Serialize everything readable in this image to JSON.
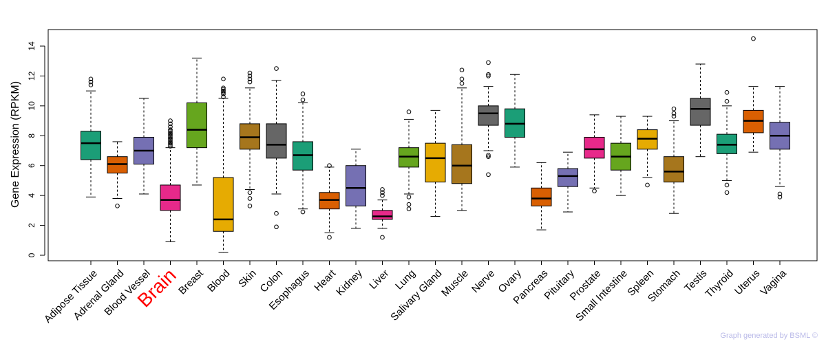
{
  "chart_data": {
    "type": "boxplot",
    "title": "",
    "xlabel": "",
    "ylabel": "Gene Expression (RPKM)",
    "ylim": [
      0,
      15
    ],
    "yticks": [
      0,
      2,
      4,
      6,
      8,
      10,
      12,
      14
    ],
    "highlight": "Brain",
    "colors": {
      "teal": "#1b9e77",
      "orange": "#d95f02",
      "purple": "#7570b3",
      "pink": "#e7298a",
      "green": "#66a61e",
      "yellow": "#e6ab02",
      "brown": "#a6761d",
      "gray": "#666666",
      "highlight_label": "#ff0000"
    },
    "series": [
      {
        "name": "Adipose Tissue",
        "color": "#1b9e77",
        "whisker_low": 3.9,
        "q1": 6.4,
        "median": 7.5,
        "q3": 8.3,
        "whisker_high": 11.0,
        "outliers": [
          11.4,
          11.6,
          11.8
        ]
      },
      {
        "name": "Adrenal Gland",
        "color": "#d95f02",
        "whisker_low": 3.8,
        "q1": 5.5,
        "median": 6.1,
        "q3": 6.6,
        "whisker_high": 7.6,
        "outliers": [
          3.3
        ]
      },
      {
        "name": "Blood Vessel",
        "color": "#7570b3",
        "whisker_low": 4.1,
        "q1": 6.1,
        "median": 7.0,
        "q3": 7.9,
        "whisker_high": 10.5,
        "outliers": []
      },
      {
        "name": "Brain",
        "color": "#e7298a",
        "whisker_low": 0.9,
        "q1": 3.0,
        "median": 3.7,
        "q3": 4.7,
        "whisker_high": 7.2,
        "outliers": [
          7.3,
          7.4,
          7.5,
          7.6,
          7.7,
          7.8,
          7.9,
          8.0,
          8.1,
          8.2,
          8.3,
          8.4,
          8.6,
          8.8,
          9.0
        ]
      },
      {
        "name": "Breast",
        "color": "#66a61e",
        "whisker_low": 4.7,
        "q1": 7.2,
        "median": 8.4,
        "q3": 10.2,
        "whisker_high": 13.2,
        "outliers": []
      },
      {
        "name": "Blood",
        "color": "#e6ab02",
        "whisker_low": 0.2,
        "q1": 1.6,
        "median": 2.4,
        "q3": 5.2,
        "whisker_high": 10.5,
        "outliers": [
          10.6,
          10.8,
          10.9,
          11.0,
          11.1,
          11.2,
          11.8
        ]
      },
      {
        "name": "Skin",
        "color": "#a6761d",
        "whisker_low": 4.4,
        "q1": 7.1,
        "median": 7.9,
        "q3": 8.8,
        "whisker_high": 11.2,
        "outliers": [
          3.3,
          3.8,
          4.2,
          11.6,
          11.8,
          12.0,
          12.2
        ]
      },
      {
        "name": "Colon",
        "color": "#666666",
        "whisker_low": 4.1,
        "q1": 6.5,
        "median": 7.4,
        "q3": 8.8,
        "whisker_high": 11.7,
        "outliers": [
          1.9,
          2.8,
          12.5
        ]
      },
      {
        "name": "Esophagus",
        "color": "#1b9e77",
        "whisker_low": 3.1,
        "q1": 5.7,
        "median": 6.7,
        "q3": 7.6,
        "whisker_high": 10.2,
        "outliers": [
          2.9,
          10.4,
          10.8
        ]
      },
      {
        "name": "Heart",
        "color": "#d95f02",
        "whisker_low": 1.5,
        "q1": 3.1,
        "median": 3.7,
        "q3": 4.2,
        "whisker_high": 5.9,
        "outliers": [
          1.2,
          6.0
        ]
      },
      {
        "name": "Kidney",
        "color": "#7570b3",
        "whisker_low": 1.8,
        "q1": 3.3,
        "median": 4.5,
        "q3": 6.0,
        "whisker_high": 7.1,
        "outliers": []
      },
      {
        "name": "Liver",
        "color": "#e7298a",
        "whisker_low": 1.8,
        "q1": 2.4,
        "median": 2.6,
        "q3": 3.0,
        "whisker_high": 3.7,
        "outliers": [
          1.2,
          4.0,
          4.2,
          4.4
        ]
      },
      {
        "name": "Lung",
        "color": "#66a61e",
        "whisker_low": 4.1,
        "q1": 5.9,
        "median": 6.6,
        "q3": 7.2,
        "whisker_high": 9.1,
        "outliers": [
          3.1,
          3.4,
          3.9,
          9.6
        ]
      },
      {
        "name": "Salivary Gland",
        "color": "#e6ab02",
        "whisker_low": 2.6,
        "q1": 4.9,
        "median": 6.5,
        "q3": 7.5,
        "whisker_high": 9.7,
        "outliers": []
      },
      {
        "name": "Muscle",
        "color": "#a6761d",
        "whisker_low": 3.0,
        "q1": 4.8,
        "median": 6.0,
        "q3": 7.4,
        "whisker_high": 11.2,
        "outliers": [
          11.5,
          11.8,
          12.4
        ]
      },
      {
        "name": "Nerve",
        "color": "#666666",
        "whisker_low": 7.0,
        "q1": 8.7,
        "median": 9.5,
        "q3": 10.0,
        "whisker_high": 11.3,
        "outliers": [
          5.4,
          6.6,
          6.7,
          12.0,
          12.1,
          12.9
        ]
      },
      {
        "name": "Ovary",
        "color": "#1b9e77",
        "whisker_low": 5.9,
        "q1": 7.9,
        "median": 8.8,
        "q3": 9.8,
        "whisker_high": 12.1,
        "outliers": []
      },
      {
        "name": "Pancreas",
        "color": "#d95f02",
        "whisker_low": 1.7,
        "q1": 3.3,
        "median": 3.8,
        "q3": 4.5,
        "whisker_high": 6.2,
        "outliers": []
      },
      {
        "name": "Pituitary",
        "color": "#7570b3",
        "whisker_low": 2.9,
        "q1": 4.6,
        "median": 5.3,
        "q3": 5.8,
        "whisker_high": 6.9,
        "outliers": []
      },
      {
        "name": "Prostate",
        "color": "#e7298a",
        "whisker_low": 4.5,
        "q1": 6.5,
        "median": 7.1,
        "q3": 7.9,
        "whisker_high": 9.4,
        "outliers": [
          4.3
        ]
      },
      {
        "name": "Small Intestine",
        "color": "#66a61e",
        "whisker_low": 4.0,
        "q1": 5.7,
        "median": 6.6,
        "q3": 7.5,
        "whisker_high": 9.3,
        "outliers": []
      },
      {
        "name": "Spleen",
        "color": "#e6ab02",
        "whisker_low": 5.2,
        "q1": 7.1,
        "median": 7.8,
        "q3": 8.4,
        "whisker_high": 9.3,
        "outliers": [
          4.7
        ]
      },
      {
        "name": "Stomach",
        "color": "#a6761d",
        "whisker_low": 2.8,
        "q1": 4.9,
        "median": 5.6,
        "q3": 6.6,
        "whisker_high": 9.0,
        "outliers": [
          9.3,
          9.5,
          9.8
        ]
      },
      {
        "name": "Testis",
        "color": "#666666",
        "whisker_low": 6.6,
        "q1": 8.7,
        "median": 9.8,
        "q3": 10.5,
        "whisker_high": 12.8,
        "outliers": []
      },
      {
        "name": "Thyroid",
        "color": "#1b9e77",
        "whisker_low": 5.0,
        "q1": 6.8,
        "median": 7.4,
        "q3": 8.1,
        "whisker_high": 10.0,
        "outliers": [
          4.2,
          4.7,
          10.3,
          10.9
        ]
      },
      {
        "name": "Uterus",
        "color": "#d95f02",
        "whisker_low": 6.9,
        "q1": 8.2,
        "median": 9.0,
        "q3": 9.7,
        "whisker_high": 11.3,
        "outliers": [
          14.5
        ]
      },
      {
        "name": "Vagina",
        "color": "#7570b3",
        "whisker_low": 4.6,
        "q1": 7.1,
        "median": 8.0,
        "q3": 8.9,
        "whisker_high": 11.3,
        "outliers": [
          3.9,
          4.1
        ]
      }
    ]
  },
  "footer": {
    "credit": "Graph generated by BSML ©"
  }
}
